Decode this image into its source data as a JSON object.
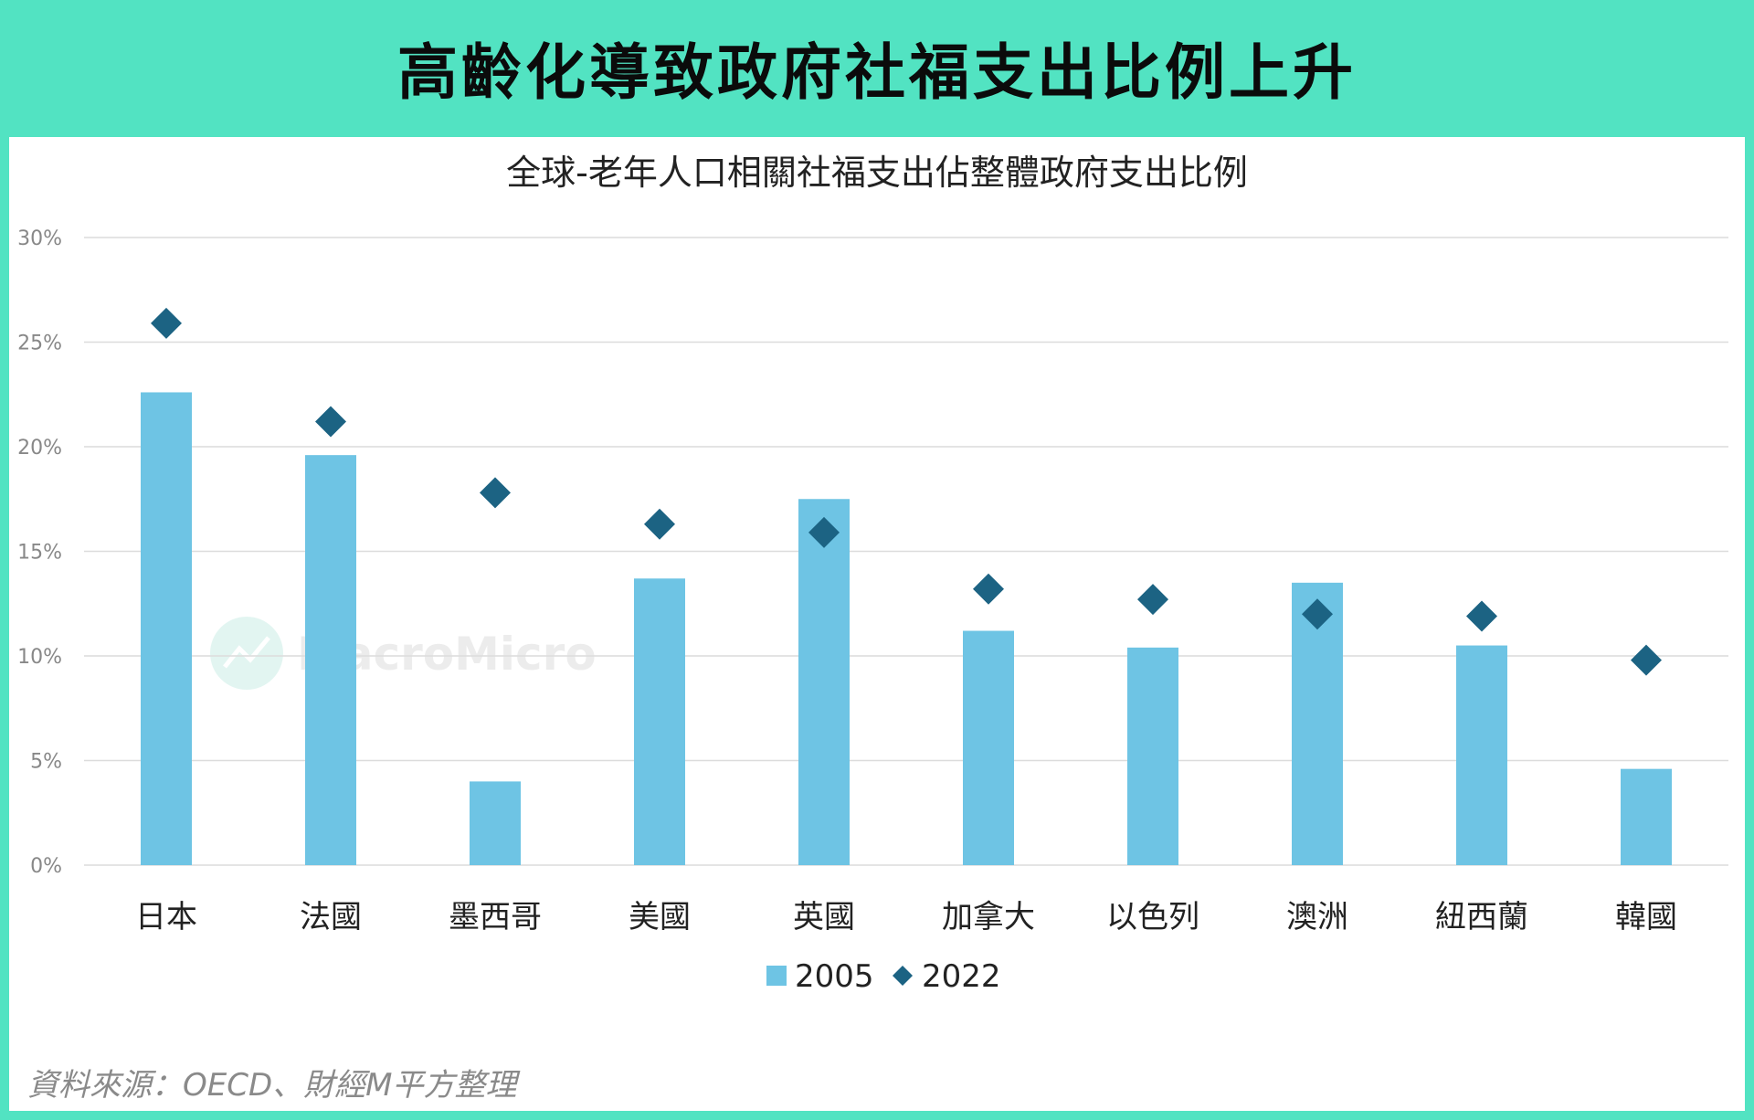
{
  "header": {
    "title": "高齡化導致政府社福支出比例上升"
  },
  "watermark": {
    "text": "MacroMicro"
  },
  "source": {
    "text": "資料來源：OECD、財經M平方整理"
  },
  "colors": {
    "background": "#52e3c2",
    "bar": "#6ec4e4",
    "marker": "#1c6383",
    "grid": "#dcdcdc",
    "tick": "#888888"
  },
  "chart_data": {
    "type": "bar",
    "title": "全球-老年人口相關社福支出佔整體政府支出比例",
    "xlabel": "",
    "ylabel": "",
    "ylim": [
      0,
      30
    ],
    "y_ticks": [
      "0%",
      "5%",
      "10%",
      "15%",
      "20%",
      "25%",
      "30%"
    ],
    "grid": true,
    "legend_position": "bottom-center",
    "categories": [
      "日本",
      "法國",
      "墨西哥",
      "美國",
      "英國",
      "加拿大",
      "以色列",
      "澳洲",
      "紐西蘭",
      "韓國"
    ],
    "series": [
      {
        "name": "2005",
        "type": "bar",
        "values": [
          22.6,
          19.6,
          4.0,
          13.7,
          17.5,
          11.2,
          10.4,
          13.5,
          10.5,
          4.6
        ]
      },
      {
        "name": "2022",
        "type": "marker",
        "values": [
          25.9,
          21.2,
          17.8,
          16.3,
          15.9,
          13.2,
          12.7,
          12.0,
          11.9,
          9.8
        ]
      }
    ]
  }
}
